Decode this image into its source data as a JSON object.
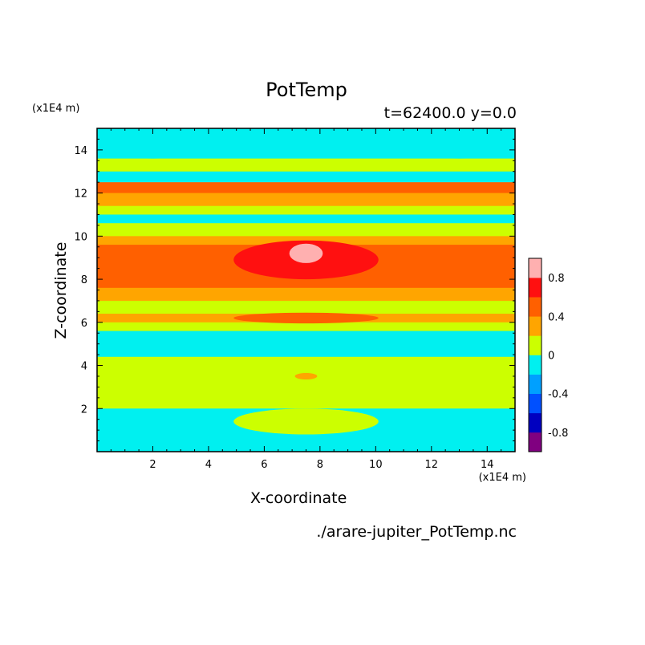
{
  "chart_data": {
    "type": "heatmap",
    "title": "PotTemp",
    "subtitle": "t=62400.0 y=0.0",
    "xlabel": "X-coordinate",
    "ylabel": "Z-coordinate",
    "x_unit": "(x1E4 m)",
    "y_unit": "(x1E4 m)",
    "xlim": [
      0,
      15
    ],
    "ylim": [
      0,
      15
    ],
    "x_ticks": [
      2,
      4,
      6,
      8,
      10,
      12,
      14
    ],
    "y_ticks": [
      2,
      4,
      6,
      8,
      10,
      12,
      14
    ],
    "colorbar": {
      "levels": [
        -1.0,
        -0.8,
        -0.6,
        -0.4,
        -0.2,
        0.0,
        0.2,
        0.4,
        0.6,
        0.8,
        1.0
      ],
      "colors": [
        "#800080",
        "#0000c0",
        "#0050ff",
        "#00a0ff",
        "#00f0f0",
        "#ccff00",
        "#ffa500",
        "#ff6000",
        "#ff1010",
        "#ffb0b0"
      ],
      "tick_labels": [
        "0.8",
        "0.4",
        "0",
        "-0.4",
        "-0.8"
      ],
      "tick_values": [
        0.8,
        0.4,
        0.0,
        -0.4,
        -0.8
      ]
    },
    "bands": [
      {
        "z": [
          14.5,
          15.0
        ],
        "value": -0.1
      },
      {
        "z": [
          13.6,
          14.5
        ],
        "value": -0.1
      },
      {
        "z": [
          13.0,
          13.6
        ],
        "value": 0.1
      },
      {
        "z": [
          12.5,
          13.0
        ],
        "value": -0.1
      },
      {
        "z": [
          12.0,
          12.5
        ],
        "value": 0.5
      },
      {
        "z": [
          11.4,
          12.0
        ],
        "value": 0.3
      },
      {
        "z": [
          11.0,
          11.4
        ],
        "value": 0.1
      },
      {
        "z": [
          10.6,
          11.0
        ],
        "value": -0.1
      },
      {
        "z": [
          10.0,
          10.6
        ],
        "value": 0.1
      },
      {
        "z": [
          9.6,
          10.0
        ],
        "value": 0.3
      },
      {
        "z": [
          7.6,
          9.6
        ],
        "value": 0.5
      },
      {
        "z": [
          7.0,
          7.6
        ],
        "value": 0.3
      },
      {
        "z": [
          6.4,
          7.0
        ],
        "value": 0.1
      },
      {
        "z": [
          6.0,
          6.4
        ],
        "value": 0.3
      },
      {
        "z": [
          5.6,
          6.0
        ],
        "value": 0.1
      },
      {
        "z": [
          4.4,
          5.6
        ],
        "value": -0.1
      },
      {
        "z": [
          2.0,
          4.4
        ],
        "value": 0.1
      },
      {
        "z": [
          0.0,
          2.0
        ],
        "value": -0.1
      }
    ],
    "features": [
      {
        "shape": "ellipse",
        "cx": 7.5,
        "cz": 8.9,
        "rx": 2.6,
        "rz": 0.9,
        "value": 0.7
      },
      {
        "shape": "ellipse",
        "cx": 7.5,
        "cz": 9.2,
        "rx": 0.6,
        "rz": 0.45,
        "value": 0.9
      },
      {
        "shape": "ellipse",
        "cx": 7.5,
        "cz": 6.2,
        "rx": 2.6,
        "rz": 0.25,
        "value": 0.5
      },
      {
        "shape": "ellipse",
        "cx": 7.5,
        "cz": 3.5,
        "rx": 0.4,
        "rz": 0.15,
        "value": 0.3
      },
      {
        "shape": "ellipse",
        "cx": 2.0,
        "cz": 14.2,
        "rx": 2.5,
        "rz": 0.6,
        "value": -0.1
      },
      {
        "shape": "ellipse",
        "cx": 13.0,
        "cz": 14.2,
        "rx": 2.5,
        "rz": 0.6,
        "value": -0.1
      },
      {
        "shape": "ellipse",
        "cx": 7.5,
        "cz": 1.4,
        "rx": 2.6,
        "rz": 0.6,
        "value": 0.1
      }
    ],
    "file": "./arare-jupiter_PotTemp.nc"
  }
}
